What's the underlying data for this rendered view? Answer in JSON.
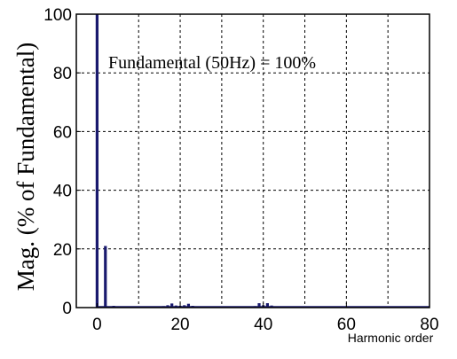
{
  "chart_data": {
    "type": "bar",
    "ylabel": "Mag.  (% of  Fundamental)",
    "xlabel": "Harmonic  order",
    "annotation": "Fundamental (50Hz) = 100%",
    "xlim": [
      -5,
      80
    ],
    "ylim": [
      0,
      100
    ],
    "xticks": [
      0,
      20,
      40,
      60,
      80
    ],
    "yticks": [
      0,
      20,
      40,
      60,
      80,
      100
    ],
    "grid": true,
    "bar_color": "#1a1a6e",
    "x": [
      0,
      2,
      4,
      6,
      8,
      10,
      12,
      14,
      16,
      17,
      18,
      19,
      20,
      21,
      22,
      23,
      24,
      26,
      28,
      30,
      32,
      34,
      36,
      38,
      39,
      40,
      41,
      42,
      43,
      44,
      46,
      48,
      50,
      52,
      54,
      56,
      58,
      60,
      62,
      64,
      66,
      68,
      70,
      72,
      74,
      76,
      78
    ],
    "values": [
      100,
      21,
      0.6,
      0.4,
      0.3,
      0.3,
      0.4,
      0.3,
      0.5,
      0.8,
      1.4,
      0.7,
      0.6,
      0.8,
      1.3,
      0.6,
      0.3,
      0.3,
      0.3,
      0.3,
      0.3,
      0.3,
      0.4,
      0.5,
      1.5,
      0.8,
      1.5,
      0.7,
      0.4,
      0.3,
      0.3,
      0.3,
      0.2,
      0.2,
      0.2,
      0.2,
      0.2,
      0.2,
      0.2,
      0.2,
      0.2,
      0.2,
      0.2,
      0.2,
      0.2,
      0.2,
      0.2
    ]
  }
}
